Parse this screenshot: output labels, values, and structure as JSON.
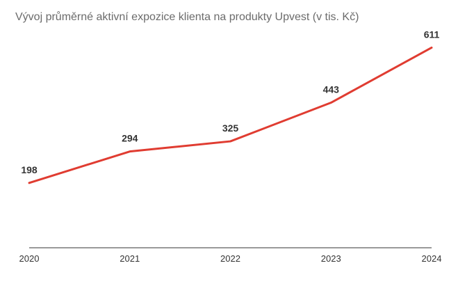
{
  "chart_data": {
    "type": "line",
    "title": "Vývoj průměrné aktivní expozice klienta na produkty Upvest (v tis. Kč)",
    "xlabel": "",
    "ylabel": "",
    "x": [
      "2020",
      "2021",
      "2022",
      "2023",
      "2024"
    ],
    "series": [
      {
        "values": [
          198,
          294,
          325,
          443,
          611
        ]
      }
    ],
    "ylim": [
      0,
      700
    ],
    "grid": false,
    "legend": "none",
    "line_color": "#e03c31",
    "axis_color": "#333333"
  }
}
